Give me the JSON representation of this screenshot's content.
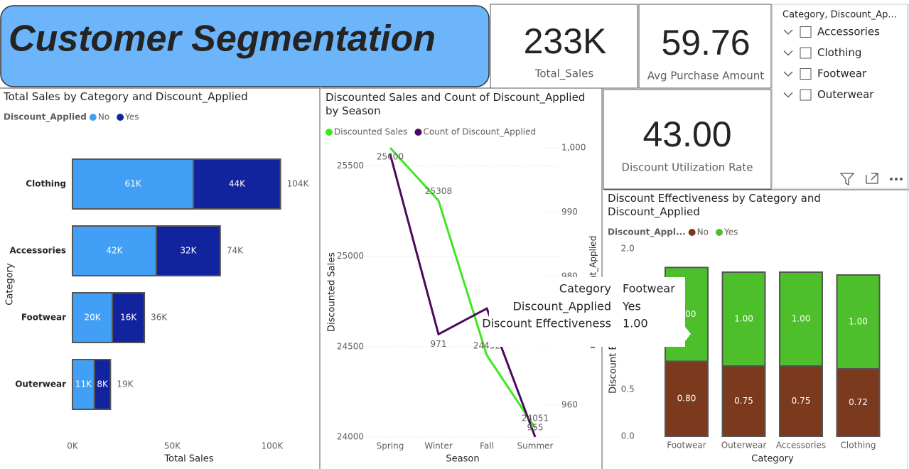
{
  "header": {
    "title": "Customer Segmentation"
  },
  "cards": [
    {
      "value": "233K",
      "label": "Total_Sales"
    },
    {
      "value": "59.76",
      "label": "Avg Purchase Amount"
    },
    {
      "value": "43.00",
      "label": "Discount Utilization Rate"
    }
  ],
  "slicer": {
    "title": "Category, Discount_Ap...",
    "items": [
      "Accessories",
      "Clothing",
      "Footwear",
      "Outerwear"
    ]
  },
  "tooltip": {
    "rows": [
      [
        "Category",
        "Footwear"
      ],
      [
        "Discount_Applied",
        "Yes"
      ],
      [
        "Discount Effectiveness",
        "1.00"
      ]
    ]
  },
  "chart_data": [
    {
      "type": "bar",
      "orientation": "horizontal",
      "title": "Total Sales by Category and Discount_Applied",
      "legend_title": "Discount_Applied",
      "xlabel": "Total Sales",
      "ylabel": "Category",
      "categories": [
        "Clothing",
        "Accessories",
        "Footwear",
        "Outerwear"
      ],
      "series": [
        {
          "name": "No",
          "color": "#41a0f5",
          "values": [
            60600,
            42000,
            20000,
            11000
          ],
          "value_labels": [
            "61K",
            "42K",
            "20K",
            "11K"
          ]
        },
        {
          "name": "Yes",
          "color": "#12239e",
          "values": [
            43600,
            32000,
            16000,
            8000
          ],
          "value_labels": [
            "44K",
            "32K",
            "16K",
            "8K"
          ]
        }
      ],
      "total_labels": [
        "104K",
        "74K",
        "36K",
        "19K"
      ],
      "xlim": [
        0,
        120000
      ],
      "xticks": [
        {
          "value": 0,
          "label": "0K"
        },
        {
          "value": 50000,
          "label": "50K"
        },
        {
          "value": 100000,
          "label": "100K"
        }
      ],
      "grid": false
    },
    {
      "type": "line",
      "title": "Discounted Sales and Count of Discount_Applied by Season",
      "xlabel": "Season",
      "ylabel": "Discounted Sales",
      "y2label": "Count of Discount_Applied",
      "categories": [
        "Spring",
        "Winter",
        "Fall",
        "Summer"
      ],
      "series": [
        {
          "name": "Discounted Sales",
          "color": "#3ee81f",
          "values": [
            25600,
            25308,
            24452,
            24051
          ],
          "value_labels": [
            "25600",
            "25308",
            "24452",
            "24051"
          ]
        },
        {
          "name": "Count of Discount_Applied",
          "color": "#4b0a5e",
          "axis": "y2",
          "values": [
            999,
            971,
            975,
            955
          ],
          "value_labels": [
            null,
            "971",
            null,
            "955"
          ]
        }
      ],
      "ylim": [
        24000,
        25600
      ],
      "yticks": [
        24000,
        24500,
        25000,
        25500
      ],
      "y2lim": [
        955,
        1000
      ],
      "y2ticks": [
        {
          "value": 1000,
          "label": "1,000"
        },
        990,
        980,
        970,
        960
      ],
      "grid": true
    },
    {
      "type": "bar",
      "orientation": "vertical",
      "title": "Discount Effectiveness by Category and Discount_Applied",
      "legend_title": "Discount_Appl...",
      "xlabel": "Category",
      "ylabel": "Discount Effectiveness",
      "categories": [
        "Footwear",
        "Outerwear",
        "Accessories",
        "Clothing"
      ],
      "series": [
        {
          "name": "No",
          "color": "#7b3a1e",
          "values": [
            0.8,
            0.75,
            0.75,
            0.72
          ],
          "value_labels": [
            "0.80",
            "0.75",
            "0.75",
            "0.72"
          ]
        },
        {
          "name": "Yes",
          "color": "#4dbf2a",
          "values": [
            1,
            1,
            1,
            1
          ],
          "value_labels": [
            "1.00",
            "1.00",
            "1.00",
            "1.00"
          ]
        }
      ],
      "ylim": [
        0,
        2
      ],
      "yticks": [
        {
          "value": 0,
          "label": "0.0"
        },
        {
          "value": 0.5,
          "label": "0.5"
        },
        {
          "value": 1,
          "label": "1.0"
        },
        {
          "value": 1.5,
          "label": "1.5"
        },
        {
          "value": 2,
          "label": "2.0"
        }
      ],
      "grid": false
    }
  ]
}
